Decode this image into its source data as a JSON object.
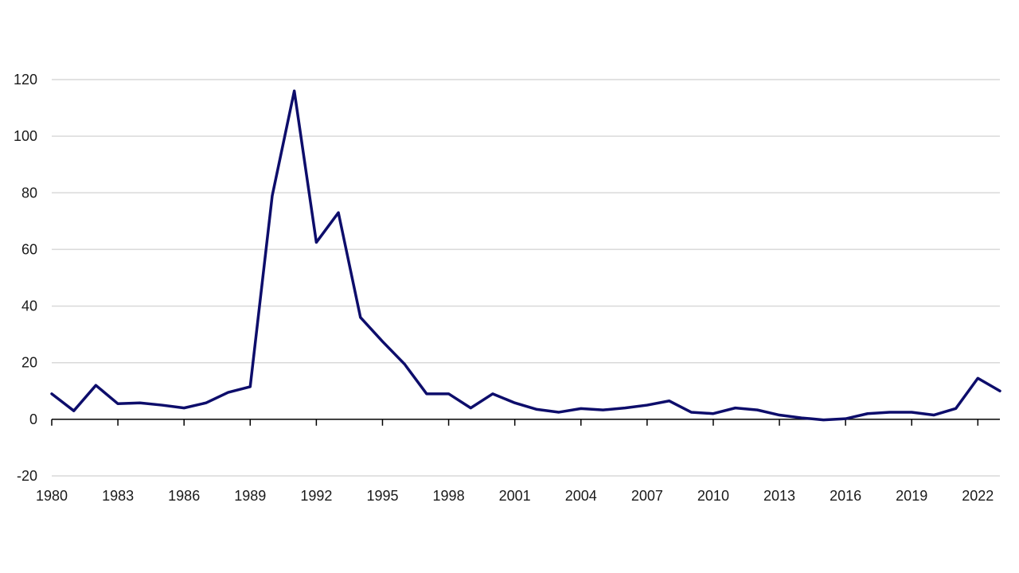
{
  "chart_data": {
    "type": "line",
    "title": "",
    "xlabel": "",
    "ylabel": "",
    "ylim": [
      -20,
      120
    ],
    "yticks": [
      -20,
      0,
      20,
      40,
      60,
      80,
      100,
      120
    ],
    "xlim": [
      1980,
      2023
    ],
    "xticks": [
      1980,
      1983,
      1986,
      1989,
      1992,
      1995,
      1998,
      2001,
      2004,
      2007,
      2010,
      2013,
      2016,
      2019,
      2022
    ],
    "grid": true,
    "legend": "none",
    "colors": {
      "series": "#0d0d6b",
      "grid": "#d9d9d9",
      "axis": "#000000"
    },
    "x": [
      1980,
      1981,
      1982,
      1983,
      1984,
      1985,
      1986,
      1987,
      1988,
      1989,
      1990,
      1991,
      1992,
      1993,
      1994,
      1995,
      1996,
      1997,
      1998,
      1999,
      2000,
      2001,
      2002,
      2003,
      2004,
      2005,
      2006,
      2007,
      2008,
      2009,
      2010,
      2011,
      2012,
      2013,
      2014,
      2015,
      2016,
      2017,
      2018,
      2019,
      2020,
      2021,
      2022,
      2023
    ],
    "series": [
      {
        "values": [
          9,
          3,
          12,
          5.5,
          5.8,
          5,
          4,
          5.8,
          9.5,
          11.5,
          79,
          116,
          62.5,
          73,
          36,
          27.5,
          19.5,
          9,
          9,
          4,
          9,
          5.8,
          3.5,
          2.5,
          3.8,
          3.3,
          4,
          5,
          6.5,
          2.5,
          2,
          4,
          3.3,
          1.5,
          0.5,
          -0.2,
          0.2,
          2,
          2.5,
          2.5,
          1.5,
          3.8,
          14.5,
          10
        ]
      }
    ]
  }
}
